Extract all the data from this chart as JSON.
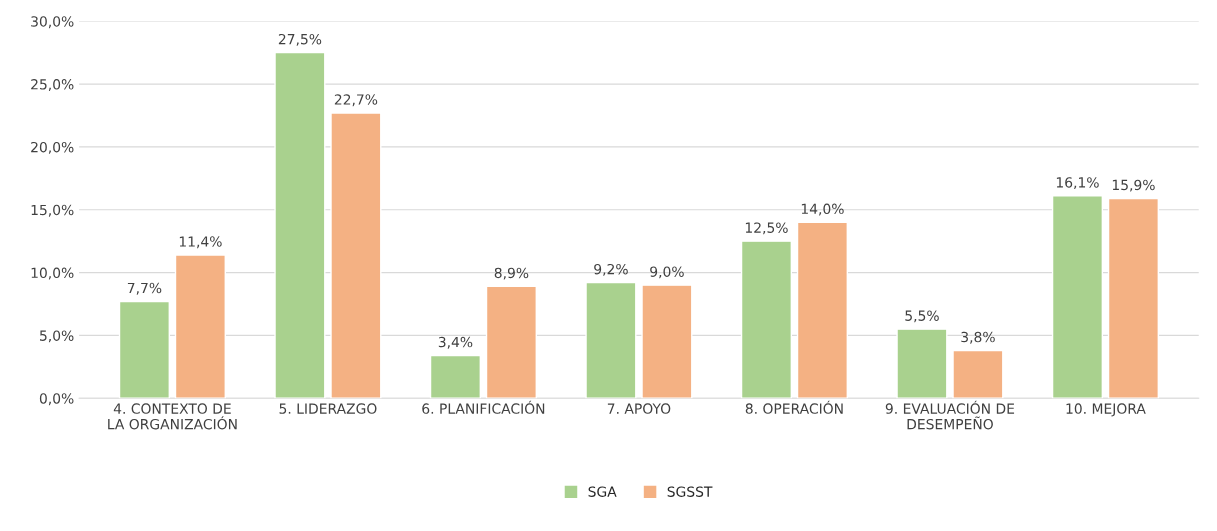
{
  "chart_data": {
    "type": "bar",
    "categories": [
      "4. CONTEXTO DE LA ORGANIZACIÓN",
      "5. LIDERAZGO",
      "6. PLANIFICACIÓN",
      "7. APOYO",
      "8. OPERACIÓN",
      "9. EVALUACIÓN DE DESEMPEÑO",
      "10. MEJORA"
    ],
    "series": [
      {
        "name": "SGA",
        "color": "#a9d18e",
        "values": [
          7.7,
          27.5,
          3.4,
          9.2,
          12.5,
          5.5,
          16.1
        ],
        "value_labels": [
          "7,7%",
          "27,5%",
          "3,4%",
          "9,2%",
          "12,5%",
          "5,5%",
          "16,1%"
        ]
      },
      {
        "name": "SGSST",
        "color": "#f4b183",
        "values": [
          11.4,
          22.7,
          8.9,
          9.0,
          14.0,
          3.8,
          15.9
        ],
        "value_labels": [
          "11,4%",
          "22,7%",
          "8,9%",
          "9,0%",
          "14,0%",
          "3,8%",
          "15,9%"
        ]
      }
    ],
    "ylim": [
      0,
      30
    ],
    "yticks": [
      {
        "value": 0,
        "label": "0,0%"
      },
      {
        "value": 5,
        "label": "5,0%"
      },
      {
        "value": 10,
        "label": "10,0%"
      },
      {
        "value": 15,
        "label": "15,0%"
      },
      {
        "value": 20,
        "label": "20,0%"
      },
      {
        "value": 25,
        "label": "25,0%"
      },
      {
        "value": 30,
        "label": "30,0%"
      }
    ],
    "grid": "y",
    "legend": "bottom"
  }
}
